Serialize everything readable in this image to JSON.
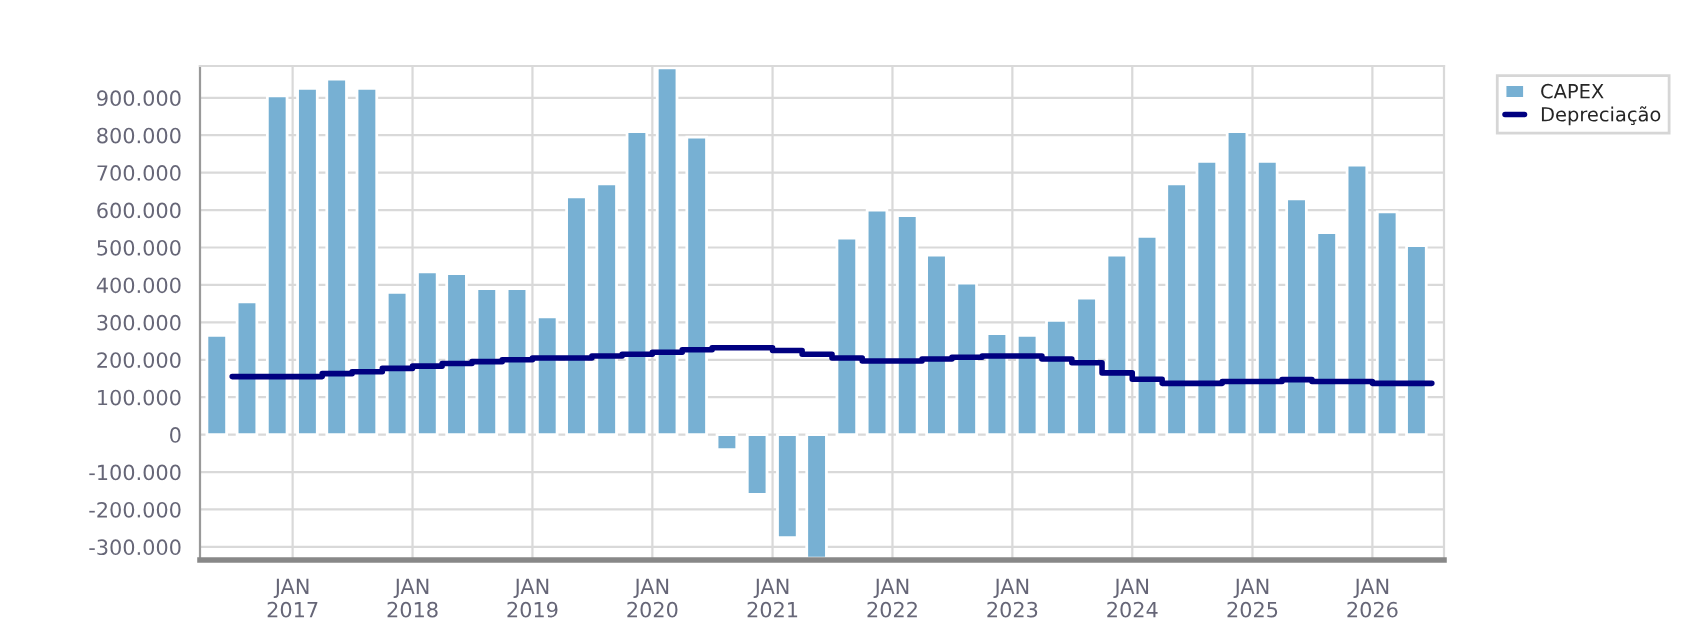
{
  "chart_data": {
    "type": "bar",
    "x": [
      "2016-05-15",
      "2016-08-15",
      "2016-11-15",
      "2017-02-15",
      "2017-05-15",
      "2017-08-15",
      "2017-11-15",
      "2018-02-15",
      "2018-05-15",
      "2018-08-15",
      "2018-11-15",
      "2019-02-15",
      "2019-05-15",
      "2019-08-15",
      "2019-11-15",
      "2020-02-15",
      "2020-05-15",
      "2020-08-15",
      "2020-11-15",
      "2021-02-15",
      "2021-05-15",
      "2021-08-15",
      "2021-11-15",
      "2022-02-15",
      "2022-05-15",
      "2022-08-15",
      "2022-11-15",
      "2023-02-15",
      "2023-05-15",
      "2023-08-15",
      "2023-11-15",
      "2024-02-15",
      "2024-05-15",
      "2024-08-15",
      "2024-11-15",
      "2025-02-15",
      "2025-05-15",
      "2025-08-15",
      "2025-11-15",
      "2026-02-15",
      "2026-05-15"
    ],
    "series": [
      {
        "name": "CAPEX",
        "color": "#77b0d3",
        "values": [
          265000,
          355000,
          905000,
          925000,
          950000,
          925000,
          380000,
          435000,
          430000,
          390000,
          390000,
          315000,
          635000,
          670000,
          810000,
          980000,
          795000,
          -40000,
          -160000,
          -275000,
          -330000,
          525000,
          600000,
          585000,
          480000,
          405000,
          270000,
          265000,
          305000,
          365000,
          480000,
          530000,
          670000,
          730000,
          810000,
          730000,
          630000,
          540000,
          720000,
          595000,
          505000
        ]
      },
      {
        "name": "Depreciação",
        "type": "step",
        "color": "#000080",
        "x": [
          "2016-07-01",
          "2016-10-01",
          "2017-01-01",
          "2017-04-01",
          "2017-07-01",
          "2017-10-01",
          "2018-01-01",
          "2018-04-01",
          "2018-07-01",
          "2018-10-01",
          "2019-01-01",
          "2019-04-01",
          "2019-07-01",
          "2019-10-01",
          "2020-01-01",
          "2020-04-01",
          "2020-07-01",
          "2020-10-01",
          "2021-01-01",
          "2021-04-01",
          "2021-07-01",
          "2021-10-01",
          "2022-01-01",
          "2022-04-01",
          "2022-07-01",
          "2022-10-01",
          "2023-01-01",
          "2023-04-01",
          "2023-07-01",
          "2023-10-01",
          "2024-01-01",
          "2024-04-01",
          "2024-07-01",
          "2024-10-01",
          "2025-01-01",
          "2025-04-01",
          "2025-07-01",
          "2025-10-01",
          "2026-01-01",
          "2026-04-01",
          "2026-07-01"
        ],
        "values": [
          155000,
          155000,
          155000,
          163000,
          168000,
          177000,
          183000,
          190000,
          195000,
          200000,
          205000,
          205000,
          210000,
          215000,
          220000,
          227000,
          232000,
          232000,
          225000,
          215000,
          205000,
          197000,
          197000,
          202000,
          207000,
          210000,
          210000,
          202000,
          192000,
          165000,
          148000,
          137000,
          137000,
          142000,
          142000,
          147000,
          142000,
          142000,
          137000,
          137000,
          137000
        ]
      }
    ],
    "xlim": [
      "2016-03-25",
      "2026-08-07"
    ],
    "xticks": [
      {
        "value": "2017-01-01",
        "label": "JAN\n2017"
      },
      {
        "value": "2018-01-01",
        "label": "JAN\n2018"
      },
      {
        "value": "2019-01-01",
        "label": "JAN\n2019"
      },
      {
        "value": "2020-01-01",
        "label": "JAN\n2020"
      },
      {
        "value": "2021-01-01",
        "label": "JAN\n2021"
      },
      {
        "value": "2022-01-01",
        "label": "JAN\n2022"
      },
      {
        "value": "2023-01-01",
        "label": "JAN\n2023"
      },
      {
        "value": "2024-01-01",
        "label": "JAN\n2024"
      },
      {
        "value": "2025-01-01",
        "label": "JAN\n2025"
      },
      {
        "value": "2026-01-01",
        "label": "JAN\n2026"
      }
    ],
    "ylim": [
      -335000,
      985000
    ],
    "yticks": [
      {
        "value": -300000,
        "label": "-300.000"
      },
      {
        "value": -200000,
        "label": "-200.000"
      },
      {
        "value": -100000,
        "label": "-100.000"
      },
      0,
      {
        "value": 100000,
        "label": "100.000"
      },
      {
        "value": 200000,
        "label": "200.000"
      },
      {
        "value": 300000,
        "label": "300.000"
      },
      {
        "value": 400000,
        "label": "400.000"
      },
      {
        "value": 500000,
        "label": "500.000"
      },
      {
        "value": 600000,
        "label": "600.000"
      },
      {
        "value": 700000,
        "label": "700.000"
      },
      {
        "value": 800000,
        "label": "800.000"
      },
      {
        "value": 900000,
        "label": "900.000"
      }
    ],
    "grid": true,
    "legend": "top right"
  }
}
